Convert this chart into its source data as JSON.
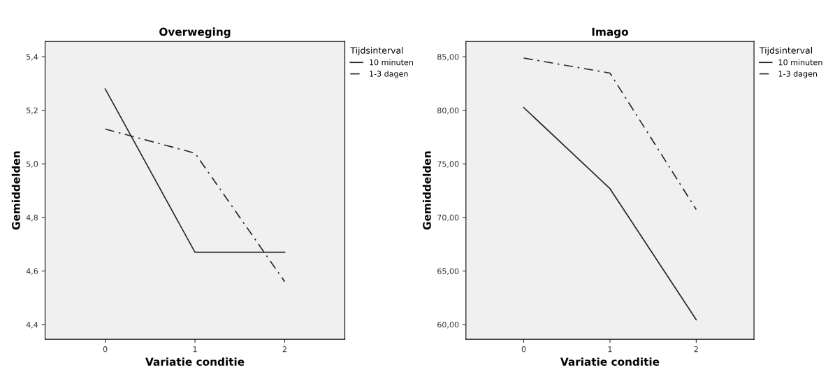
{
  "chart_data": [
    {
      "type": "line",
      "title": "Overweging",
      "xlabel": "Variatie conditie",
      "ylabel": "Gemiddelden",
      "legend_title": "Tijdsinterval",
      "legend": "right",
      "grid": false,
      "marker": "none",
      "x": [
        0,
        1,
        2
      ],
      "xlim": [
        -0.67,
        2.67
      ],
      "xticks": [
        0,
        1,
        2
      ],
      "ylim": [
        4.345,
        5.457
      ],
      "yticks": [
        {
          "value": 4.4,
          "label": "4,4"
        },
        {
          "value": 4.6,
          "label": "4,6"
        },
        {
          "value": 4.8,
          "label": "4,8"
        },
        {
          "value": 5.0,
          "label": "5,0"
        },
        {
          "value": 5.2,
          "label": "5,2"
        },
        {
          "value": 5.4,
          "label": "5,4"
        }
      ],
      "series": [
        {
          "name": "10 minuten",
          "color": "#262626",
          "line_style": "solid",
          "values": [
            5.28,
            4.67,
            4.67
          ]
        },
        {
          "name": "1-3 dagen",
          "color": "#262626",
          "line_style": "dashdot",
          "values": [
            5.13,
            5.04,
            4.56
          ]
        }
      ]
    },
    {
      "type": "line",
      "title": "Imago",
      "xlabel": "Variatie conditie",
      "ylabel": "Gemiddelden",
      "legend_title": "Tijdsinterval",
      "legend": "right",
      "grid": false,
      "marker": "none",
      "x": [
        0,
        1,
        2
      ],
      "xlim": [
        -0.67,
        2.67
      ],
      "xticks": [
        0,
        1,
        2
      ],
      "ylim": [
        58.62,
        86.43
      ],
      "yticks": [
        {
          "value": 60,
          "label": "60,00"
        },
        {
          "value": 65,
          "label": "65,00"
        },
        {
          "value": 70,
          "label": "70,00"
        },
        {
          "value": 75,
          "label": "75,00"
        },
        {
          "value": 80,
          "label": "80,00"
        },
        {
          "value": 85,
          "label": "85,00"
        }
      ],
      "series": [
        {
          "name": "10 minuten",
          "color": "#262626",
          "line_style": "solid",
          "values": [
            80.26,
            72.69,
            60.45
          ]
        },
        {
          "name": "1-3 dagen",
          "color": "#262626",
          "line_style": "dashdot",
          "values": [
            84.88,
            83.48,
            70.74
          ]
        }
      ]
    }
  ]
}
